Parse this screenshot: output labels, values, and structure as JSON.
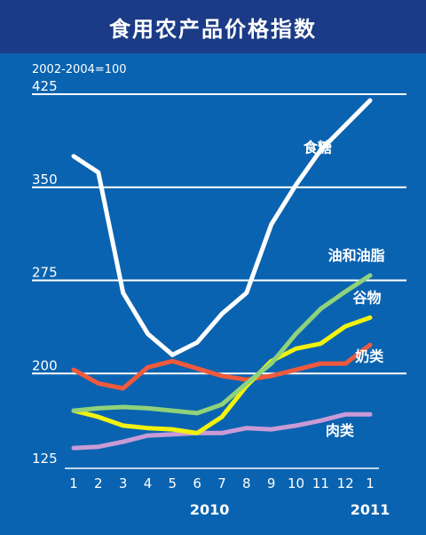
{
  "title": "食用农产品价格指数",
  "chart_data": {
    "type": "line",
    "unit_note": "2002-2004=100",
    "x": [
      "1",
      "2",
      "3",
      "4",
      "5",
      "6",
      "7",
      "8",
      "9",
      "10",
      "11",
      "12",
      "1"
    ],
    "year_labels": [
      {
        "text": "2010",
        "index": 5.5
      },
      {
        "text": "2011",
        "index": 12
      }
    ],
    "ylim": [
      125,
      425
    ],
    "yticks": [
      125,
      200,
      275,
      350,
      425
    ],
    "grid": true,
    "series": [
      {
        "name": "食糖",
        "color": "#ffffff",
        "values": [
          375,
          362,
          265,
          232,
          215,
          225,
          248,
          265,
          320,
          352,
          380,
          400,
          420
        ],
        "label_at": {
          "index": 9.3,
          "value": 378
        }
      },
      {
        "name": "油和油脂",
        "color": "#8fd27a",
        "values": [
          170,
          172,
          173,
          172,
          170,
          168,
          175,
          192,
          208,
          232,
          252,
          266,
          279
        ],
        "label_at": {
          "index": 10.3,
          "value": 291
        }
      },
      {
        "name": "谷物",
        "color": "#f2f20d",
        "values": [
          170,
          165,
          158,
          156,
          155,
          152,
          165,
          190,
          210,
          220,
          224,
          238,
          245
        ],
        "label_at": {
          "index": 11.3,
          "value": 257
        }
      },
      {
        "name": "奶类",
        "color": "#f05a3c",
        "values": [
          203,
          192,
          188,
          205,
          210,
          204,
          198,
          195,
          198,
          203,
          208,
          208,
          223
        ],
        "label_at": {
          "index": 11.4,
          "value": 210
        }
      },
      {
        "name": "肉类",
        "color": "#c99bd6",
        "values": [
          140,
          141,
          145,
          150,
          151,
          152,
          152,
          156,
          155,
          158,
          162,
          167,
          167
        ],
        "label_at": {
          "index": 10.2,
          "value": 150
        }
      }
    ]
  }
}
